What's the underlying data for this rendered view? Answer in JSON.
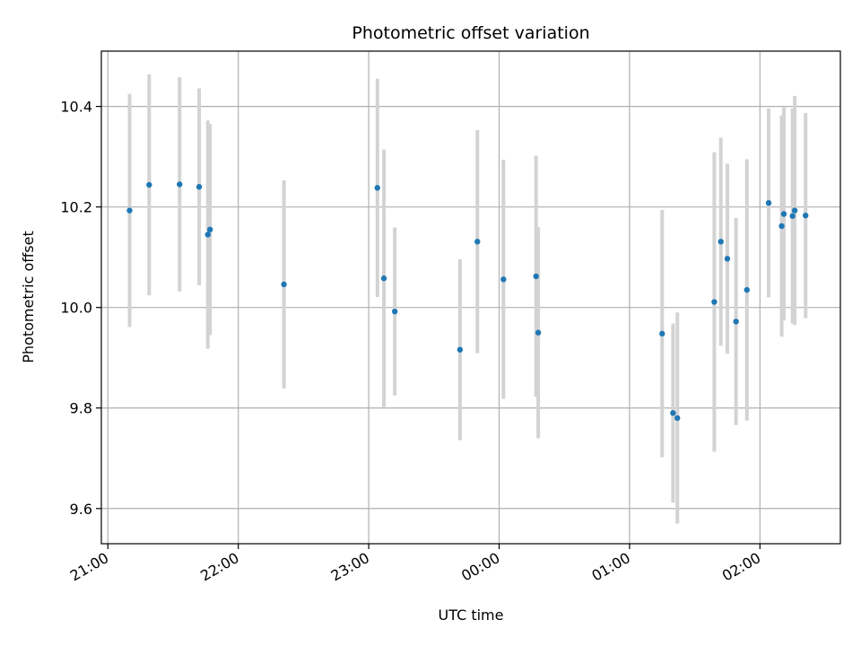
{
  "chart_data": {
    "type": "scatter",
    "title": "Photometric offset variation",
    "xlabel": "UTC time",
    "ylabel": "Photometric offset",
    "x_unit": "UTC time (HH:MM, evening to following early morning)",
    "x_ticks": [
      "21:00",
      "22:00",
      "23:00",
      "00:00",
      "01:00",
      "02:00"
    ],
    "y_ticks": [
      "9.6",
      "9.8",
      "10.0",
      "10.2",
      "10.4"
    ],
    "xlim": [
      "20:57",
      "02:37"
    ],
    "ylim": [
      9.53,
      10.51
    ],
    "grid": true,
    "legend": "none",
    "colors": {
      "points": "#1f77b4",
      "errorbars": "#d3d3d3",
      "grid": "#b0b0b0",
      "axes": "#000000"
    },
    "points": [
      {
        "x": "21:10",
        "y": 10.193,
        "err": 0.232
      },
      {
        "x": "21:19",
        "y": 10.244,
        "err": 0.22
      },
      {
        "x": "21:33",
        "y": 10.245,
        "err": 0.213
      },
      {
        "x": "21:42",
        "y": 10.24,
        "err": 0.196
      },
      {
        "x": "21:46",
        "y": 10.145,
        "err": 0.227
      },
      {
        "x": "21:47",
        "y": 10.155,
        "err": 0.21
      },
      {
        "x": "22:21",
        "y": 10.046,
        "err": 0.207
      },
      {
        "x": "23:04",
        "y": 10.238,
        "err": 0.217
      },
      {
        "x": "23:07",
        "y": 10.058,
        "err": 0.256
      },
      {
        "x": "23:12",
        "y": 9.992,
        "err": 0.167
      },
      {
        "x": "23:42",
        "y": 9.916,
        "err": 0.18
      },
      {
        "x": "23:50",
        "y": 10.131,
        "err": 0.222
      },
      {
        "x": "00:02",
        "y": 10.056,
        "err": 0.238
      },
      {
        "x": "00:17",
        "y": 10.062,
        "err": 0.24
      },
      {
        "x": "00:18",
        "y": 9.95,
        "err": 0.21
      },
      {
        "x": "01:15",
        "y": 9.948,
        "err": 0.246
      },
      {
        "x": "01:20",
        "y": 9.79,
        "err": 0.178
      },
      {
        "x": "01:22",
        "y": 9.78,
        "err": 0.21
      },
      {
        "x": "01:39",
        "y": 10.011,
        "err": 0.298
      },
      {
        "x": "01:42",
        "y": 10.131,
        "err": 0.207
      },
      {
        "x": "01:45",
        "y": 10.097,
        "err": 0.189
      },
      {
        "x": "01:49",
        "y": 9.972,
        "err": 0.206
      },
      {
        "x": "01:54",
        "y": 10.035,
        "err": 0.26
      },
      {
        "x": "02:04",
        "y": 10.208,
        "err": 0.188
      },
      {
        "x": "02:10",
        "y": 10.162,
        "err": 0.22
      },
      {
        "x": "02:11",
        "y": 10.186,
        "err": 0.212
      },
      {
        "x": "02:15",
        "y": 10.182,
        "err": 0.214
      },
      {
        "x": "02:16",
        "y": 10.193,
        "err": 0.228
      },
      {
        "x": "02:21",
        "y": 10.183,
        "err": 0.204
      }
    ]
  }
}
